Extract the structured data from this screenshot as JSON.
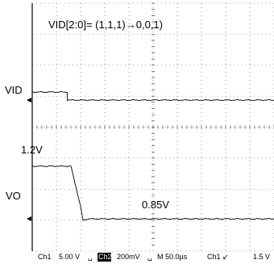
{
  "chart_data": {
    "type": "line",
    "title": "VID[2:0]= (1,1,1)→0,0,1)",
    "time_per_div_us": 50,
    "x_divisions": 10,
    "y_divisions": 8,
    "grid": true,
    "series": [
      {
        "name": "VID",
        "channel": "Ch1",
        "scale": "5.00 V",
        "x": [
          0,
          1.45,
          1.45,
          10
        ],
        "y": [
          5.3,
          5.3,
          4.0,
          4.0
        ]
      },
      {
        "name": "VO",
        "channel": "Ch2",
        "scale": "200mV",
        "x": [
          0,
          1.6,
          2.0,
          2.1,
          2.3,
          10
        ],
        "y": [
          1.2,
          1.2,
          0.94,
          0.85,
          0.86,
          0.86
        ]
      }
    ],
    "annotations": [
      {
        "id": "vo_high",
        "text": "1.2V"
      },
      {
        "id": "vo_low",
        "text": "0.85V"
      }
    ]
  },
  "footer": {
    "ch1": "Ch1",
    "ch1_scale": "5.00 V",
    "ch2": "Ch2",
    "ch2_scale": "200mV",
    "timebase": "M 50.0µs",
    "trigger": "Ch1 ↙",
    "trigger_level": "1.5 V"
  }
}
